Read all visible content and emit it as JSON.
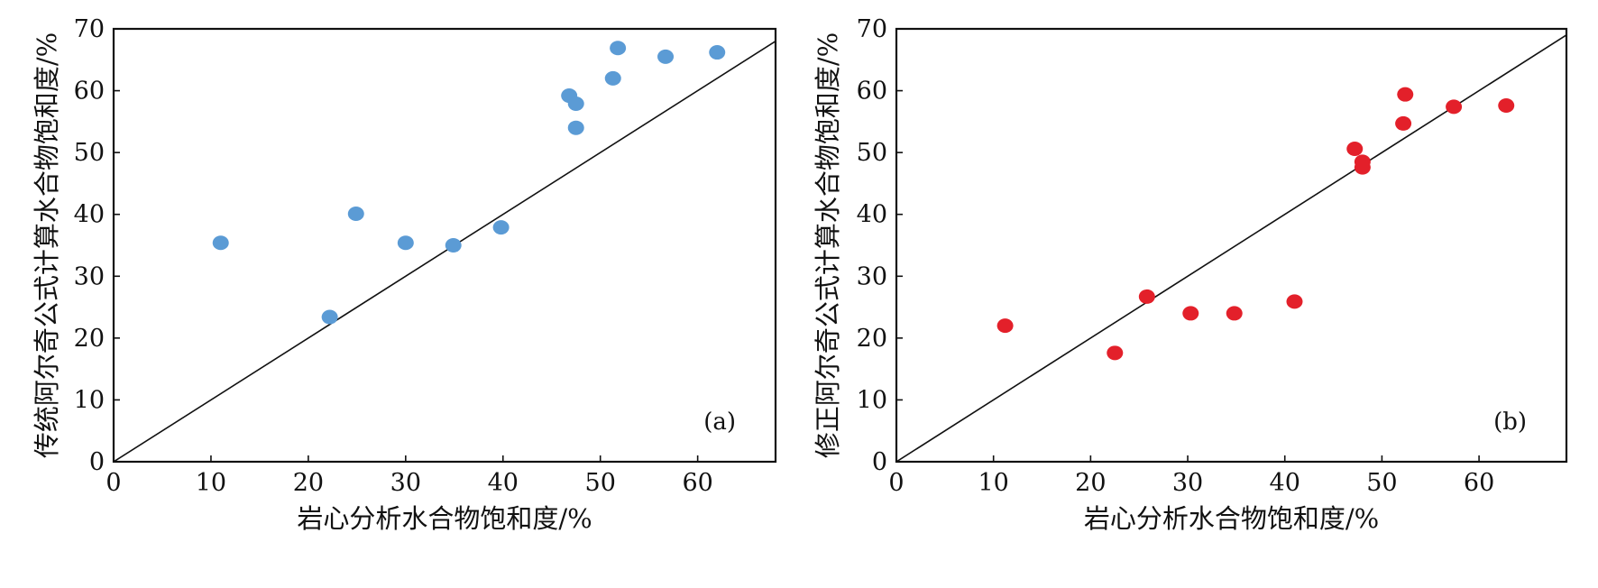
{
  "chart_data": [
    {
      "type": "scatter",
      "panel_label": "(a)",
      "xlabel": "岩心分析水合物饱和度/%",
      "ylabel": "传统阿尔奇公式计算水合物饱和度/%",
      "xlim": [
        0,
        68
      ],
      "ylim": [
        0,
        70
      ],
      "xticks": [
        "0",
        "10",
        "20",
        "30",
        "40",
        "50",
        "60"
      ],
      "yticks": [
        "0",
        "10",
        "20",
        "30",
        "40",
        "50",
        "60",
        "70"
      ],
      "reference_line": "y=x",
      "grid": false,
      "color": "#5b9bd5",
      "points": [
        {
          "x": 11.0,
          "y": 35.4
        },
        {
          "x": 22.2,
          "y": 23.4
        },
        {
          "x": 24.9,
          "y": 40.1
        },
        {
          "x": 30.0,
          "y": 35.4
        },
        {
          "x": 34.9,
          "y": 35.0
        },
        {
          "x": 39.8,
          "y": 37.9
        },
        {
          "x": 46.8,
          "y": 59.2
        },
        {
          "x": 47.5,
          "y": 57.9
        },
        {
          "x": 47.5,
          "y": 54.0
        },
        {
          "x": 51.3,
          "y": 62.0
        },
        {
          "x": 51.8,
          "y": 66.9
        },
        {
          "x": 56.7,
          "y": 65.5
        },
        {
          "x": 62.0,
          "y": 66.2
        }
      ]
    },
    {
      "type": "scatter",
      "panel_label": "(b)",
      "xlabel": "岩心分析水合物饱和度/%",
      "ylabel": "修正阿尔奇公式计算水合物饱和度/%",
      "xlim": [
        0,
        69
      ],
      "ylim": [
        0,
        70
      ],
      "xticks": [
        "0",
        "10",
        "20",
        "30",
        "40",
        "50",
        "60"
      ],
      "yticks": [
        "0",
        "10",
        "20",
        "30",
        "40",
        "50",
        "60",
        "70"
      ],
      "reference_line": "y=x",
      "grid": false,
      "color": "#e3202a",
      "points": [
        {
          "x": 11.2,
          "y": 22.0
        },
        {
          "x": 22.5,
          "y": 17.6
        },
        {
          "x": 25.8,
          "y": 26.7
        },
        {
          "x": 30.3,
          "y": 24.0
        },
        {
          "x": 34.8,
          "y": 24.0
        },
        {
          "x": 41.0,
          "y": 25.9
        },
        {
          "x": 47.2,
          "y": 50.6
        },
        {
          "x": 48.0,
          "y": 48.5
        },
        {
          "x": 48.0,
          "y": 47.6
        },
        {
          "x": 52.2,
          "y": 54.7
        },
        {
          "x": 52.4,
          "y": 59.4
        },
        {
          "x": 57.4,
          "y": 57.4
        },
        {
          "x": 62.8,
          "y": 57.6
        }
      ]
    }
  ]
}
